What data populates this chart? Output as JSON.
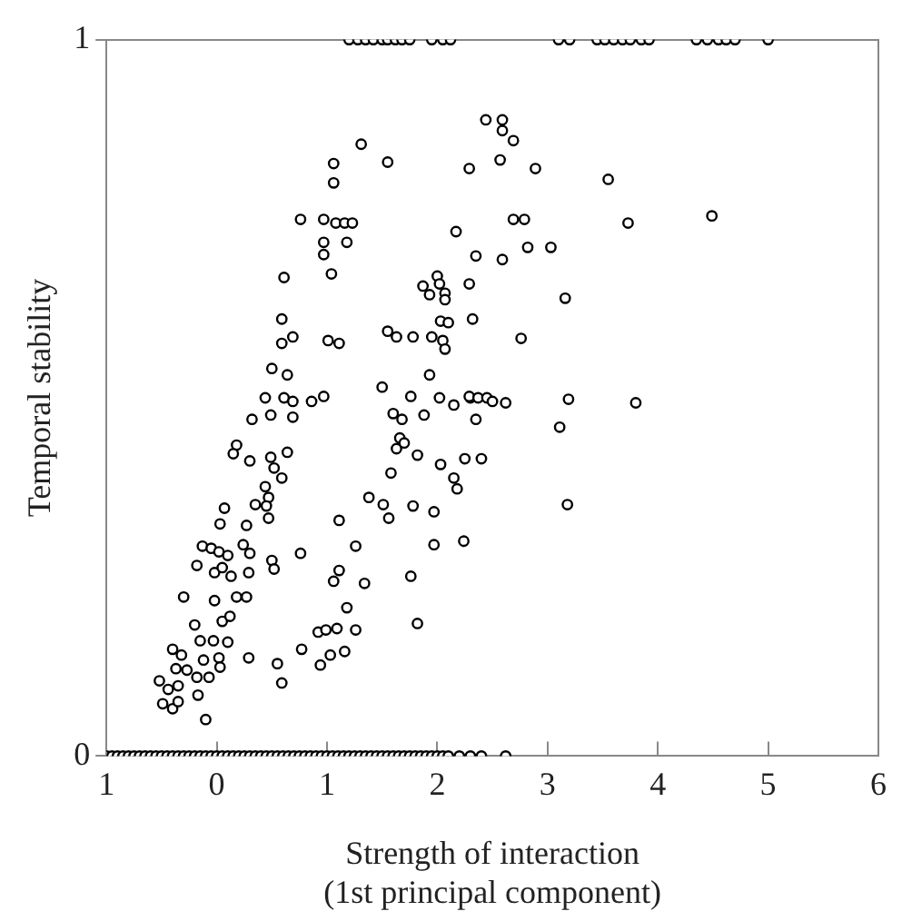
{
  "chart_data": {
    "type": "scatter",
    "xlabel": "Strength of interaction\n(1st principal component)",
    "ylabel": "Temporal stability",
    "xlim": [
      -1,
      6
    ],
    "ylim": [
      0,
      1
    ],
    "xticks": [
      {
        "value": -1,
        "label": "1"
      },
      0,
      1,
      2,
      3,
      4,
      5,
      6
    ],
    "yticks": [
      0,
      1
    ],
    "grid": false,
    "legend": false,
    "marker": "circle",
    "color": "#000000",
    "x": [
      1.2,
      1.28,
      1.35,
      1.42,
      1.5,
      1.55,
      1.62,
      1.68,
      1.75,
      1.95,
      2.05,
      2.12,
      3.1,
      3.2,
      3.45,
      3.52,
      3.6,
      3.68,
      3.75,
      3.85,
      3.92,
      4.35,
      4.45,
      4.55,
      4.62,
      4.7,
      5.0,
      1.31,
      1.06,
      1.55,
      2.29,
      1.06,
      0.76,
      0.97,
      1.08,
      1.16,
      1.23,
      0.97,
      1.18,
      0.97,
      2.17,
      0.61,
      1.04,
      0.59,
      2.0,
      2.02,
      2.07,
      2.07,
      1.87,
      1.93,
      2.29,
      2.03,
      2.1,
      0.59,
      0.69,
      1.01,
      1.11,
      1.55,
      1.63,
      1.78,
      1.95,
      2.05,
      2.07,
      0.5,
      0.64,
      1.93,
      1.5,
      1.76,
      2.02,
      2.15,
      2.3,
      0.44,
      0.61,
      0.69,
      0.86,
      0.97,
      0.32,
      0.49,
      0.69,
      1.6,
      1.68,
      1.88,
      2.44,
      2.59,
      2.59,
      2.69,
      2.57,
      2.89,
      3.55,
      2.69,
      2.79,
      3.73,
      4.49,
      2.35,
      2.59,
      2.82,
      3.03,
      3.16,
      2.32,
      2.76,
      2.29,
      2.37,
      2.45,
      2.5,
      2.62,
      3.19,
      3.8,
      3.11,
      2.35,
      1.66,
      1.63,
      1.7,
      1.82,
      2.03,
      2.25,
      2.4,
      1.58,
      2.15,
      2.18,
      1.38,
      1.51,
      1.78,
      1.97,
      3.18,
      1.11,
      1.56,
      1.26,
      1.97,
      2.24,
      1.11,
      1.06,
      1.34,
      1.76,
      0.18,
      0.15,
      0.3,
      0.49,
      0.64,
      0.52,
      0.59,
      0.44,
      0.47,
      0.35,
      0.45,
      0.07,
      0.03,
      0.27,
      0.47,
      -0.13,
      -0.05,
      0.02,
      0.1,
      0.24,
      0.3,
      -0.18,
      -0.02,
      0.05,
      0.13,
      0.29,
      0.5,
      0.52,
      0.76,
      -0.3,
      -0.02,
      0.18,
      0.27,
      -0.2,
      0.05,
      0.12,
      1.18,
      -0.15,
      -0.03,
      0.1,
      -0.4,
      -0.32,
      -0.12,
      0.02,
      0.03,
      0.29,
      -0.37,
      -0.27,
      -0.18,
      -0.07,
      -0.52,
      -0.44,
      -0.35,
      -0.49,
      -0.4,
      -0.35,
      -0.17,
      -0.1,
      0.92,
      0.99,
      1.09,
      1.26,
      0.77,
      0.94,
      1.03,
      1.16,
      0.55,
      0.59,
      1.82,
      -1,
      -0.95,
      -0.9,
      -0.85,
      -0.8,
      -0.75,
      -0.7,
      -0.65,
      -0.6,
      -0.55,
      -0.5,
      -0.45,
      -0.4,
      -0.35,
      -0.3,
      -0.25,
      -0.2,
      -0.15,
      -0.1,
      -0.05,
      0,
      0.05,
      0.1,
      0.15,
      0.2,
      0.25,
      0.3,
      0.35,
      0.4,
      0.45,
      0.5,
      0.55,
      0.6,
      0.65,
      0.7,
      0.75,
      0.8,
      0.85,
      0.9,
      0.95,
      1,
      1.05,
      1.1,
      1.15,
      1.2,
      1.25,
      1.3,
      1.35,
      1.4,
      1.45,
      1.5,
      1.55,
      1.6,
      1.65,
      1.7,
      1.75,
      1.8,
      1.85,
      1.9,
      1.95,
      2.0,
      2.05,
      2.1,
      2.2,
      2.3,
      2.4,
      2.62
    ],
    "values": [
      1,
      1,
      1,
      1,
      1,
      1,
      1,
      1,
      1,
      1,
      1,
      1,
      1,
      1,
      1,
      1,
      1,
      1,
      1,
      1,
      1,
      1,
      1,
      1,
      1,
      1,
      1,
      0.854,
      0.827,
      0.829,
      0.82,
      0.8,
      0.749,
      0.749,
      0.744,
      0.744,
      0.744,
      0.717,
      0.717,
      0.7,
      0.732,
      0.668,
      0.673,
      0.61,
      0.67,
      0.659,
      0.646,
      0.637,
      0.656,
      0.644,
      0.659,
      0.607,
      0.605,
      0.576,
      0.585,
      0.58,
      0.576,
      0.593,
      0.585,
      0.585,
      0.585,
      0.58,
      0.568,
      0.541,
      0.532,
      0.532,
      0.515,
      0.502,
      0.5,
      0.49,
      0.5,
      0.5,
      0.5,
      0.495,
      0.495,
      0.502,
      0.47,
      0.476,
      0.473,
      0.478,
      0.47,
      0.476,
      0.888,
      0.888,
      0.873,
      0.859,
      0.832,
      0.82,
      0.805,
      0.749,
      0.749,
      0.744,
      0.754,
      0.698,
      0.693,
      0.71,
      0.71,
      0.639,
      0.61,
      0.583,
      0.502,
      0.5,
      0.5,
      0.495,
      0.493,
      0.498,
      0.493,
      0.459,
      0.47,
      0.444,
      0.429,
      0.437,
      0.42,
      0.407,
      0.415,
      0.415,
      0.395,
      0.388,
      0.373,
      0.361,
      0.351,
      0.349,
      0.341,
      0.351,
      0.329,
      0.332,
      0.293,
      0.295,
      0.3,
      0.259,
      0.244,
      0.241,
      0.251,
      0.434,
      0.422,
      0.412,
      0.417,
      0.424,
      0.402,
      0.388,
      0.376,
      0.361,
      0.351,
      0.349,
      0.346,
      0.324,
      0.322,
      0.332,
      0.293,
      0.29,
      0.285,
      0.28,
      0.295,
      0.283,
      0.266,
      0.256,
      0.263,
      0.251,
      0.256,
      0.273,
      0.261,
      0.283,
      0.222,
      0.217,
      0.222,
      0.222,
      0.183,
      0.188,
      0.195,
      0.207,
      0.161,
      0.161,
      0.159,
      0.149,
      0.141,
      0.134,
      0.137,
      0.124,
      0.137,
      0.122,
      0.12,
      0.11,
      0.11,
      0.105,
      0.093,
      0.098,
      0.073,
      0.066,
      0.076,
      0.085,
      0.051,
      0.173,
      0.176,
      0.178,
      0.176,
      0.149,
      0.127,
      0.141,
      0.146,
      0.129,
      0.102,
      0.185,
      0,
      0,
      0,
      0,
      0,
      0,
      0,
      0,
      0,
      0,
      0,
      0,
      0,
      0,
      0,
      0,
      0,
      0,
      0,
      0,
      0,
      0,
      0,
      0,
      0,
      0,
      0,
      0,
      0,
      0,
      0,
      0,
      0,
      0,
      0,
      0,
      0,
      0,
      0,
      0,
      0,
      0,
      0,
      0,
      0,
      0,
      0,
      0,
      0,
      0,
      0,
      0,
      0,
      0,
      0,
      0,
      0,
      0,
      0,
      0,
      0,
      0,
      0,
      0,
      0,
      0,
      0
    ]
  }
}
